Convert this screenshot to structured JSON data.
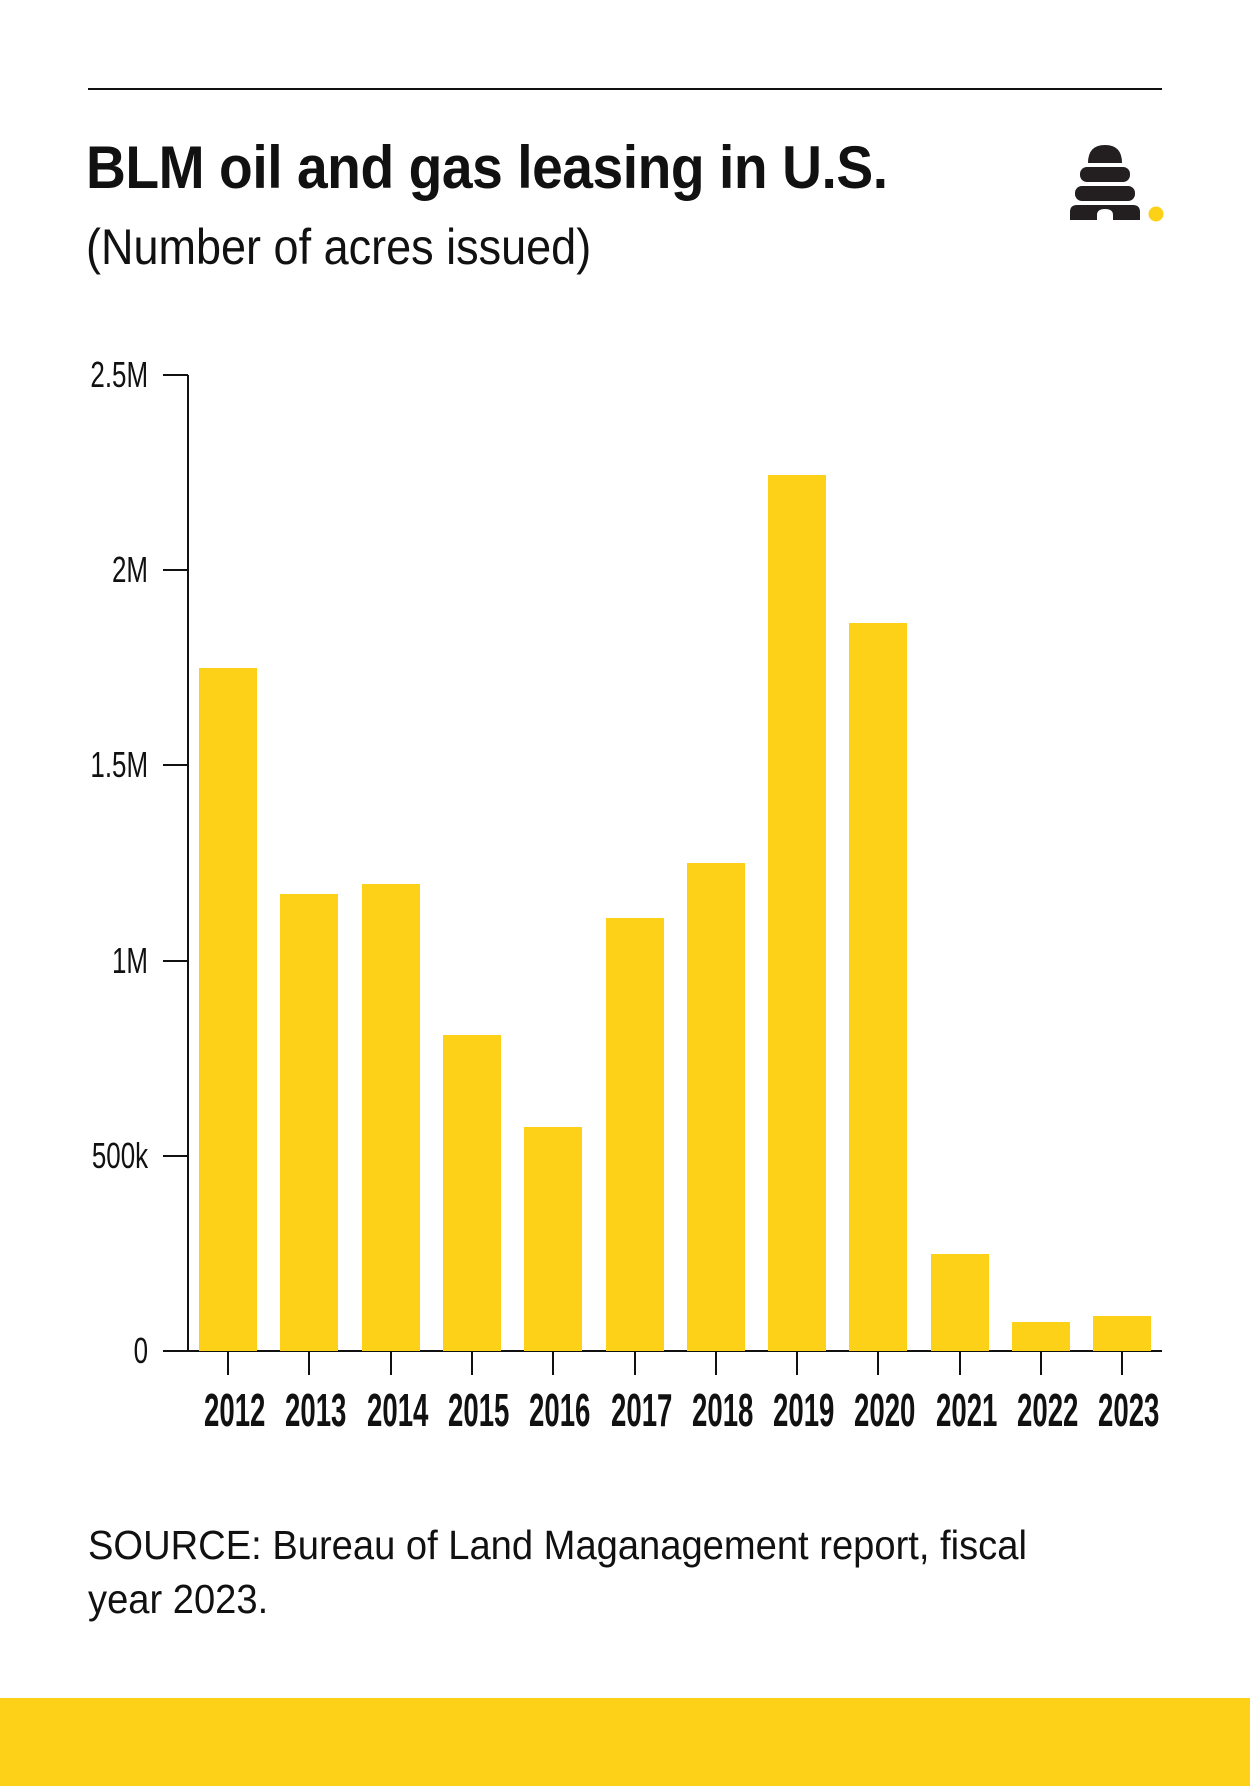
{
  "header": {
    "title": "BLM oil and gas leasing in U.S.",
    "subtitle": "(Number of acres issued)",
    "logo_icon": "beehive-icon"
  },
  "colors": {
    "bar": "#FDD117",
    "footer_band": "#FDD117",
    "logo_dot": "#FDD117",
    "text": "#111111"
  },
  "yaxis": {
    "ticks": [
      {
        "label": "2.5M",
        "value": 2500000
      },
      {
        "label": "2M",
        "value": 2000000
      },
      {
        "label": "1.5M",
        "value": 1500000
      },
      {
        "label": "1M",
        "value": 1000000
      },
      {
        "label": "500k",
        "value": 500000
      },
      {
        "label": "0",
        "value": 0
      }
    ]
  },
  "chart_data": {
    "type": "bar",
    "title": "BLM oil and gas leasing in U.S.",
    "subtitle": "(Number of acres issued)",
    "xlabel": "",
    "ylabel": "Number of acres issued",
    "categories": [
      "2012",
      "2013",
      "2014",
      "2015",
      "2016",
      "2017",
      "2018",
      "2019",
      "2020",
      "2021",
      "2022",
      "2023"
    ],
    "values": [
      1750000,
      1170000,
      1195000,
      810000,
      575000,
      1110000,
      1250000,
      2245000,
      1865000,
      248000,
      74000,
      90000
    ],
    "ylim": [
      0,
      2500000
    ],
    "yticks": [
      "0",
      "500k",
      "1M",
      "1.5M",
      "2M",
      "2.5M"
    ],
    "grid": false,
    "legend": null
  },
  "footer": {
    "source": "SOURCE: Bureau of Land Maganagement report, fiscal year 2023."
  }
}
